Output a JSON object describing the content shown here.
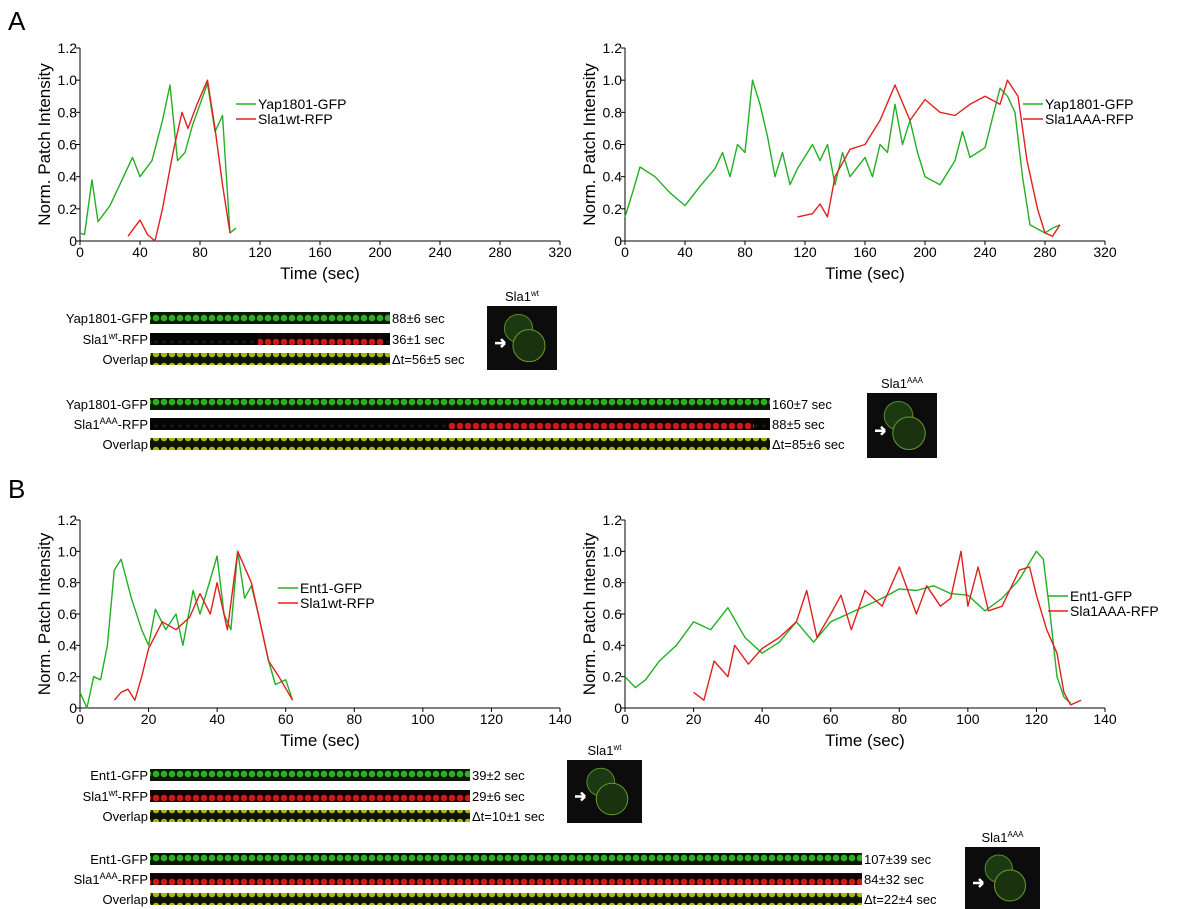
{
  "panels": [
    "A",
    "B"
  ],
  "chart_data": [
    {
      "type": "line",
      "xlabel": "Time (sec)",
      "ylabel": "Norm. Patch Intensity",
      "xlim": [
        0,
        320
      ],
      "ylim": [
        0,
        1.2
      ],
      "xticks": [
        0,
        40,
        80,
        120,
        160,
        200,
        240,
        280,
        320
      ],
      "yticks": [
        0,
        0.2,
        0.4,
        0.6,
        0.8,
        {
          "value": 1,
          "label": "1.0"
        },
        1.2
      ],
      "series": [
        {
          "name": "Yap1801-GFP",
          "color": "#22b022",
          "x": [
            0,
            3,
            8,
            12,
            20,
            28,
            35,
            40,
            48,
            55,
            60,
            65,
            70,
            75,
            80,
            85,
            90,
            95,
            100,
            104
          ],
          "values": [
            0.05,
            0.04,
            0.38,
            0.12,
            0.22,
            0.38,
            0.52,
            0.4,
            0.5,
            0.75,
            0.97,
            0.5,
            0.55,
            0.72,
            0.85,
            0.98,
            0.68,
            0.78,
            0.05,
            0.08
          ]
        },
        {
          "name": "Sla1wt-RFP",
          "color": "#e02020",
          "x": [
            32,
            36,
            40,
            45,
            50,
            55,
            62,
            68,
            72,
            78,
            85,
            90,
            95,
            100
          ],
          "values": [
            0.03,
            0.08,
            0.13,
            0.04,
            0,
            0.2,
            0.55,
            0.8,
            0.7,
            0.85,
            1.0,
            0.7,
            0.35,
            0.05
          ]
        }
      ]
    },
    {
      "type": "line",
      "xlabel": "Time (sec)",
      "ylabel": "Norm. Patch Intensity",
      "xlim": [
        0,
        320
      ],
      "ylim": [
        0,
        1.2
      ],
      "xticks": [
        0,
        40,
        80,
        120,
        160,
        200,
        240,
        280,
        320
      ],
      "yticks": [
        0,
        0.2,
        0.4,
        0.6,
        0.8,
        {
          "value": 1,
          "label": "1.0"
        },
        1.2
      ],
      "series": [
        {
          "name": "Yap1801-GFP",
          "color": "#22b022",
          "x": [
            0,
            5,
            10,
            20,
            30,
            40,
            50,
            60,
            65,
            70,
            75,
            80,
            85,
            90,
            95,
            100,
            105,
            110,
            115,
            125,
            130,
            135,
            140,
            145,
            150,
            160,
            165,
            170,
            175,
            180,
            185,
            190,
            195,
            200,
            210,
            220,
            225,
            230,
            240,
            250,
            255,
            260,
            265,
            270,
            280,
            285,
            290
          ],
          "values": [
            0.15,
            0.3,
            0.46,
            0.4,
            0.3,
            0.22,
            0.34,
            0.45,
            0.55,
            0.4,
            0.6,
            0.55,
            1.0,
            0.85,
            0.65,
            0.4,
            0.55,
            0.35,
            0.45,
            0.6,
            0.5,
            0.6,
            0.35,
            0.55,
            0.4,
            0.52,
            0.4,
            0.6,
            0.55,
            0.85,
            0.6,
            0.75,
            0.55,
            0.4,
            0.35,
            0.5,
            0.68,
            0.52,
            0.58,
            0.95,
            0.9,
            0.8,
            0.4,
            0.1,
            0.05,
            0.08,
            0.1
          ]
        },
        {
          "name": "Sla1AAA-RFP",
          "color": "#e02020",
          "x": [
            115,
            125,
            130,
            135,
            140,
            150,
            160,
            170,
            180,
            190,
            200,
            210,
            220,
            230,
            240,
            250,
            255,
            262,
            268,
            275,
            280,
            285,
            290
          ],
          "values": [
            0.15,
            0.17,
            0.23,
            0.15,
            0.4,
            0.57,
            0.6,
            0.75,
            0.97,
            0.75,
            0.88,
            0.8,
            0.78,
            0.85,
            0.9,
            0.85,
            1.0,
            0.9,
            0.5,
            0.2,
            0.05,
            0.03,
            0.1
          ]
        }
      ]
    },
    {
      "type": "line",
      "xlabel": "Time (sec)",
      "ylabel": "Norm. Patch Intensity",
      "xlim": [
        0,
        140
      ],
      "ylim": [
        0,
        1.2
      ],
      "xticks": [
        0,
        20,
        40,
        60,
        80,
        100,
        120,
        140
      ],
      "yticks": [
        0,
        0.2,
        0.4,
        0.6,
        0.8,
        {
          "value": 1,
          "label": "1.0"
        },
        1.2
      ],
      "series": [
        {
          "name": "Ent1-GFP",
          "color": "#22b022",
          "x": [
            0,
            2,
            4,
            6,
            8,
            10,
            12,
            15,
            18,
            20,
            22,
            25,
            28,
            30,
            33,
            35,
            38,
            40,
            42,
            44,
            46,
            48,
            50,
            52,
            55,
            57,
            60,
            62
          ],
          "values": [
            0.1,
            0,
            0.2,
            0.18,
            0.4,
            0.88,
            0.95,
            0.7,
            0.5,
            0.4,
            0.63,
            0.5,
            0.6,
            0.4,
            0.75,
            0.6,
            0.82,
            0.97,
            0.6,
            0.5,
            1.0,
            0.7,
            0.78,
            0.6,
            0.3,
            0.15,
            0.18,
            0.05
          ]
        },
        {
          "name": "Sla1wt-RFP",
          "color": "#e02020",
          "x": [
            10,
            12,
            14,
            16,
            18,
            20,
            24,
            28,
            32,
            35,
            38,
            40,
            43,
            46,
            50,
            52,
            55,
            58,
            62
          ],
          "values": [
            0.05,
            0.1,
            0.12,
            0.05,
            0.2,
            0.38,
            0.55,
            0.5,
            0.58,
            0.73,
            0.6,
            0.8,
            0.5,
            1.0,
            0.8,
            0.6,
            0.3,
            0.2,
            0.05
          ]
        }
      ]
    },
    {
      "type": "line",
      "xlabel": "Time (sec)",
      "ylabel": "Norm. Patch Intensity",
      "xlim": [
        0,
        140
      ],
      "ylim": [
        0,
        1.2
      ],
      "xticks": [
        0,
        20,
        40,
        60,
        80,
        100,
        120,
        140
      ],
      "yticks": [
        0,
        0.2,
        0.4,
        0.6,
        0.8,
        {
          "value": 1,
          "label": "1.0"
        },
        1.2
      ],
      "series": [
        {
          "name": "Ent1-GFP",
          "color": "#22b022",
          "x": [
            0,
            3,
            6,
            10,
            15,
            20,
            25,
            30,
            35,
            40,
            45,
            50,
            55,
            60,
            65,
            70,
            75,
            80,
            85,
            90,
            95,
            100,
            105,
            110,
            115,
            120,
            122,
            124,
            126,
            128,
            130
          ],
          "values": [
            0.2,
            0.13,
            0.18,
            0.3,
            0.4,
            0.55,
            0.5,
            0.64,
            0.45,
            0.35,
            0.42,
            0.55,
            0.42,
            0.55,
            0.6,
            0.65,
            0.7,
            0.76,
            0.75,
            0.78,
            0.73,
            0.72,
            0.62,
            0.7,
            0.82,
            1.0,
            0.95,
            0.6,
            0.2,
            0.07,
            0.03
          ]
        },
        {
          "name": "Sla1AAA-RFP",
          "color": "#e02020",
          "x": [
            20,
            23,
            26,
            30,
            32,
            36,
            40,
            45,
            50,
            53,
            56,
            60,
            63,
            66,
            70,
            75,
            80,
            85,
            88,
            92,
            95,
            98,
            100,
            103,
            106,
            110,
            115,
            118,
            120,
            123,
            126,
            128,
            130,
            133
          ],
          "values": [
            0.1,
            0.05,
            0.3,
            0.2,
            0.4,
            0.28,
            0.38,
            0.45,
            0.55,
            0.75,
            0.45,
            0.6,
            0.72,
            0.5,
            0.75,
            0.65,
            0.9,
            0.6,
            0.78,
            0.65,
            0.7,
            1.0,
            0.65,
            0.9,
            0.62,
            0.65,
            0.88,
            0.9,
            0.72,
            0.5,
            0.35,
            0.1,
            0.02,
            0.05
          ]
        }
      ]
    }
  ],
  "kymographs": [
    {
      "cell_label": [
        "Sla1",
        "wt"
      ],
      "rows": [
        {
          "label": [
            "Yap1801-GFP"
          ],
          "duration": "88±6 sec"
        },
        {
          "label": [
            "Sla1",
            "wt",
            "-RFP"
          ],
          "duration": "36±1 sec"
        },
        {
          "label": [
            "Overlap"
          ],
          "duration": "Δt=56±5 sec"
        }
      ]
    },
    {
      "cell_label": [
        "Sla1",
        "AAA"
      ],
      "rows": [
        {
          "label": [
            "Yap1801-GFP"
          ],
          "duration": "160±7 sec"
        },
        {
          "label": [
            "Sla1",
            "AAA",
            "-RFP"
          ],
          "duration": "88±5 sec"
        },
        {
          "label": [
            "Overlap"
          ],
          "duration": "Δt=85±6 sec"
        }
      ]
    },
    {
      "cell_label": [
        "Sla1",
        "wt"
      ],
      "rows": [
        {
          "label": [
            "Ent1-GFP"
          ],
          "duration": "39±2 sec"
        },
        {
          "label": [
            "Sla1",
            "wt",
            "-RFP"
          ],
          "duration": "29±6 sec"
        },
        {
          "label": [
            "Overlap"
          ],
          "duration": "Δt=10±1 sec"
        }
      ]
    },
    {
      "cell_label": [
        "Sla1",
        "AAA"
      ],
      "rows": [
        {
          "label": [
            "Ent1-GFP"
          ],
          "duration": "107±39 sec"
        },
        {
          "label": [
            "Sla1",
            "AAA",
            "-RFP"
          ],
          "duration": "84±32 sec"
        },
        {
          "label": [
            "Overlap"
          ],
          "duration": "Δt=22±4 sec"
        }
      ]
    }
  ]
}
